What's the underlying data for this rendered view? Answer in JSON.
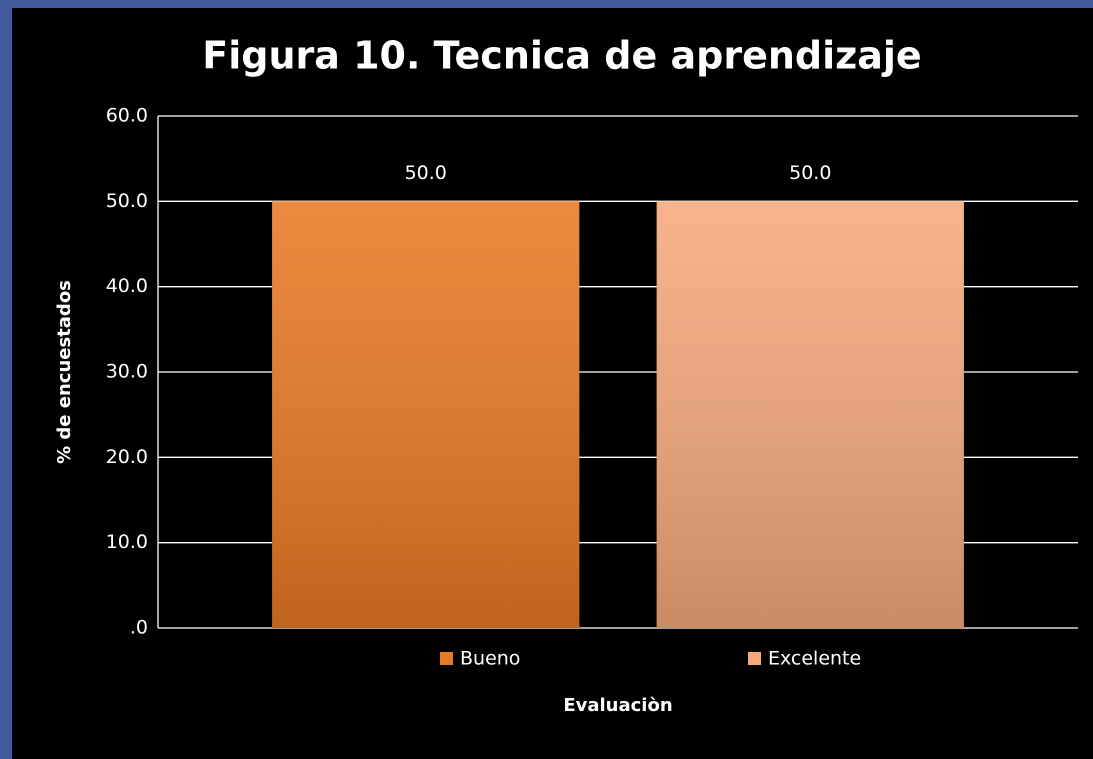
{
  "chart_data": {
    "type": "bar",
    "title": "Figura 10. Tecnica de aprendizaje",
    "x_label": "Evaluaciòn",
    "y_label": "% de encuestados",
    "categories": [
      null
    ],
    "series": [
      {
        "name": "Bueno",
        "color": "#e97a24",
        "values": [
          50
        ],
        "value_labels": [
          "50.0"
        ]
      },
      {
        "name": "Excelente",
        "color": "#f5a97c",
        "values": [
          50
        ],
        "value_labels": [
          "50.0"
        ]
      }
    ],
    "ylim": [
      0,
      60
    ],
    "yticks": [
      {
        "value": 0,
        "label": ".0"
      },
      {
        "value": 10,
        "label": "10.0"
      },
      {
        "value": 20,
        "label": "20.0"
      },
      {
        "value": 30,
        "label": "30.0"
      },
      {
        "value": 40,
        "label": "40.0"
      },
      {
        "value": 50,
        "label": "50.0"
      },
      {
        "value": 60,
        "label": "60.0"
      }
    ],
    "grid": true,
    "legend": "bottom"
  }
}
